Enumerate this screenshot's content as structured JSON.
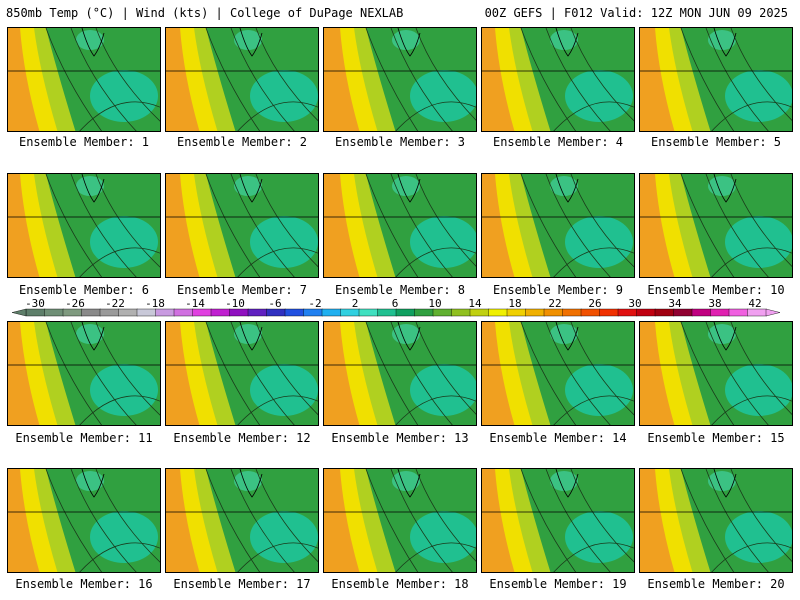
{
  "header": {
    "title_left": "850mb Temp (°C) | Wind (kts) | College of DuPage NEXLAB",
    "title_right": "00Z GEFS | F012 Valid: 12Z MON JUN 09 2025"
  },
  "members": [
    {
      "label": "Ensemble Member: 1"
    },
    {
      "label": "Ensemble Member: 2"
    },
    {
      "label": "Ensemble Member: 3"
    },
    {
      "label": "Ensemble Member: 4"
    },
    {
      "label": "Ensemble Member: 5"
    },
    {
      "label": "Ensemble Member: 6"
    },
    {
      "label": "Ensemble Member: 7"
    },
    {
      "label": "Ensemble Member: 8"
    },
    {
      "label": "Ensemble Member: 9"
    },
    {
      "label": "Ensemble Member: 10"
    },
    {
      "label": "Ensemble Member: 11"
    },
    {
      "label": "Ensemble Member: 12"
    },
    {
      "label": "Ensemble Member: 13"
    },
    {
      "label": "Ensemble Member: 14"
    },
    {
      "label": "Ensemble Member: 15"
    },
    {
      "label": "Ensemble Member: 16"
    },
    {
      "label": "Ensemble Member: 17"
    },
    {
      "label": "Ensemble Member: 18"
    },
    {
      "label": "Ensemble Member: 19"
    },
    {
      "label": "Ensemble Member: 20"
    }
  ],
  "colorbar": {
    "labels": [
      "-30",
      "-26",
      "-22",
      "-18",
      "-14",
      "-10",
      "-6",
      "-2",
      "2",
      "6",
      "10",
      "14",
      "18",
      "22",
      "26",
      "30",
      "34",
      "38",
      "42"
    ],
    "colors": [
      "#5e7f6a",
      "#6f8f76",
      "#7f9a7f",
      "#8a8a8a",
      "#9a9a9a",
      "#b0b0b0",
      "#c8c8d8",
      "#c89ae0",
      "#d070e0",
      "#e040e0",
      "#c020d0",
      "#9010c0",
      "#6020c0",
      "#3030c0",
      "#2050e0",
      "#2080f0",
      "#20b0f0",
      "#30d0e0",
      "#40e0c0",
      "#20c090",
      "#10a060",
      "#30a040",
      "#60b030",
      "#90c020",
      "#c0d010",
      "#f0f000",
      "#f0d000",
      "#f0b000",
      "#f09000",
      "#f07000",
      "#f05000",
      "#f03000",
      "#e01010",
      "#c00010",
      "#a00010",
      "#900030",
      "#c00080",
      "#e020b0",
      "#f060e0",
      "#f0a0f0"
    ],
    "map_colors": {
      "warm_orange": "#f0a020",
      "yellow": "#f0e000",
      "yellow_green": "#b0d020",
      "green": "#30a040",
      "teal": "#20c090",
      "light_teal": "#40d0a0"
    }
  }
}
